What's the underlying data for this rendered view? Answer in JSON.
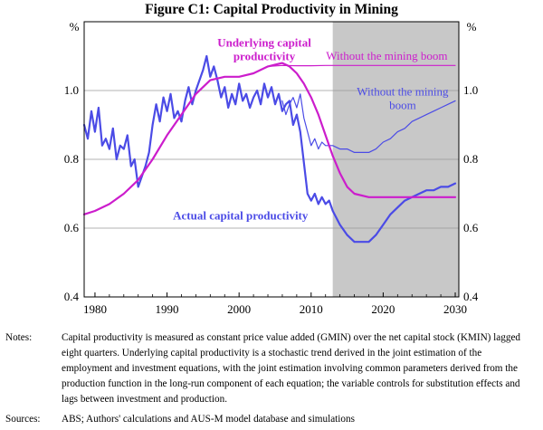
{
  "chart_data": {
    "type": "line",
    "title": "Figure C1: Capital Productivity in Mining",
    "ylabel_left": "%",
    "ylabel_right": "%",
    "xlim": [
      1978.5,
      2030.5
    ],
    "ylim": [
      0.4,
      1.2
    ],
    "x_ticks": [
      1980,
      1990,
      2000,
      2010,
      2020,
      2030
    ],
    "y_ticks": [
      0.4,
      0.6,
      0.8,
      1.0
    ],
    "y_tick_labels": [
      "0.4",
      "0.6",
      "0.8",
      "1.0"
    ],
    "shaded_region": {
      "x": [
        2013.0,
        2030.5
      ],
      "color": "#c8c8c8"
    },
    "series": [
      {
        "key": "actual",
        "name": "Actual capital productivity",
        "color": "#4b4be6",
        "width": 2.2,
        "x": [
          1978.5,
          1979,
          1979.5,
          1980,
          1980.5,
          1981,
          1981.5,
          1982,
          1982.5,
          1983,
          1983.5,
          1984,
          1984.5,
          1985,
          1985.5,
          1986,
          1986.5,
          1987,
          1987.5,
          1988,
          1988.5,
          1989,
          1989.5,
          1990,
          1990.5,
          1991,
          1991.5,
          1992,
          1992.5,
          1993,
          1993.5,
          1994,
          1994.5,
          1995,
          1995.5,
          1996,
          1996.5,
          1997,
          1997.5,
          1998,
          1998.5,
          1999,
          1999.5,
          2000,
          2000.5,
          2001,
          2001.5,
          2002,
          2002.5,
          2003,
          2003.5,
          2004,
          2004.5,
          2005,
          2005.5,
          2006,
          2006.5,
          2007,
          2007.5,
          2008,
          2008.5,
          2009,
          2009.5,
          2010,
          2010.5,
          2011,
          2011.5,
          2012,
          2012.5,
          2013,
          2014,
          2015,
          2016,
          2017,
          2018,
          2019,
          2020,
          2021,
          2022,
          2023,
          2024,
          2025,
          2026,
          2027,
          2028,
          2029,
          2030
        ],
        "y": [
          0.9,
          0.86,
          0.94,
          0.88,
          0.95,
          0.84,
          0.86,
          0.83,
          0.89,
          0.8,
          0.84,
          0.83,
          0.87,
          0.78,
          0.8,
          0.72,
          0.75,
          0.78,
          0.82,
          0.9,
          0.96,
          0.91,
          0.98,
          0.94,
          0.99,
          0.92,
          0.94,
          0.91,
          0.97,
          1.01,
          0.96,
          1.0,
          1.03,
          1.06,
          1.1,
          1.04,
          1.07,
          1.03,
          0.98,
          1.01,
          0.95,
          0.99,
          0.96,
          1.02,
          0.97,
          0.99,
          0.95,
          0.98,
          1.0,
          0.96,
          1.02,
          0.98,
          1.01,
          0.96,
          0.99,
          0.94,
          0.96,
          0.97,
          0.9,
          0.93,
          0.88,
          0.79,
          0.7,
          0.68,
          0.7,
          0.67,
          0.69,
          0.67,
          0.68,
          0.65,
          0.61,
          0.58,
          0.56,
          0.56,
          0.56,
          0.58,
          0.61,
          0.64,
          0.66,
          0.68,
          0.69,
          0.7,
          0.71,
          0.71,
          0.72,
          0.72,
          0.73
        ]
      },
      {
        "key": "actual_without",
        "name": "Without the mining boom",
        "color": "#4b4be6",
        "width": 1.2,
        "x": [
          2006,
          2006.5,
          2007,
          2007.5,
          2008,
          2008.5,
          2009,
          2009.5,
          2010,
          2010.5,
          2011,
          2011.5,
          2012,
          2013,
          2014,
          2015,
          2016,
          2017,
          2018,
          2019,
          2020,
          2021,
          2022,
          2023,
          2024,
          2025,
          2026,
          2027,
          2028,
          2029,
          2030
        ],
        "y": [
          0.97,
          0.93,
          0.96,
          0.98,
          0.95,
          0.99,
          0.92,
          0.88,
          0.84,
          0.86,
          0.83,
          0.85,
          0.84,
          0.84,
          0.83,
          0.83,
          0.82,
          0.82,
          0.82,
          0.83,
          0.85,
          0.86,
          0.88,
          0.89,
          0.91,
          0.92,
          0.93,
          0.94,
          0.95,
          0.96,
          0.97
        ]
      },
      {
        "key": "underlying",
        "name": "Underlying capital productivity",
        "color": "#cc1dcc",
        "width": 2.2,
        "x": [
          1978.5,
          1980,
          1982,
          1984,
          1986,
          1988,
          1990,
          1992,
          1994,
          1996,
          1998,
          2000,
          2002,
          2004,
          2005,
          2006,
          2007,
          2008,
          2009,
          2010,
          2011,
          2012,
          2013,
          2014,
          2015,
          2016,
          2018,
          2020,
          2022,
          2025,
          2030
        ],
        "y": [
          0.64,
          0.65,
          0.67,
          0.7,
          0.74,
          0.8,
          0.87,
          0.93,
          0.99,
          1.03,
          1.04,
          1.04,
          1.05,
          1.07,
          1.075,
          1.08,
          1.07,
          1.05,
          1.02,
          0.98,
          0.93,
          0.87,
          0.81,
          0.76,
          0.72,
          0.7,
          0.69,
          0.69,
          0.69,
          0.69,
          0.69
        ]
      },
      {
        "key": "underlying_without",
        "name": "Without the mining boom",
        "color": "#cc1dcc",
        "width": 1.2,
        "x": [
          2004,
          2006,
          2008,
          2010,
          2012,
          2015,
          2020,
          2025,
          2030
        ],
        "y": [
          1.07,
          1.073,
          1.072,
          1.072,
          1.073,
          1.073,
          1.073,
          1.073,
          1.073
        ]
      }
    ],
    "annotations": [
      {
        "key": "underlying",
        "lines": [
          "Underlying capital",
          "productivity"
        ],
        "color": "#cc1dcc",
        "bold": true
      },
      {
        "key": "underlying_without",
        "lines": [
          "Without the mining boom"
        ],
        "color": "#cc1dcc",
        "bold": false
      },
      {
        "key": "actual_without",
        "lines": [
          "Without the mining",
          "boom"
        ],
        "color": "#4b4be6",
        "bold": false
      },
      {
        "key": "actual",
        "lines": [
          "Actual capital productivity"
        ],
        "color": "#4b4be6",
        "bold": true
      }
    ]
  },
  "notes": {
    "label": "Notes:",
    "text": "Capital productivity is measured as constant price value added (GMIN) over the net capital stock (KMIN) lagged eight quarters. Underlying capital productivity is a stochastic trend derived in the joint estimation of the employment and investment equations, with the joint estimation involving common parameters derived from the production function in the long-run component of each equation; the variable controls for substitution effects and lags between investment and production."
  },
  "sources": {
    "label": "Sources:",
    "text": "ABS; Authors' calculations and AUS-M model database and simulations"
  }
}
